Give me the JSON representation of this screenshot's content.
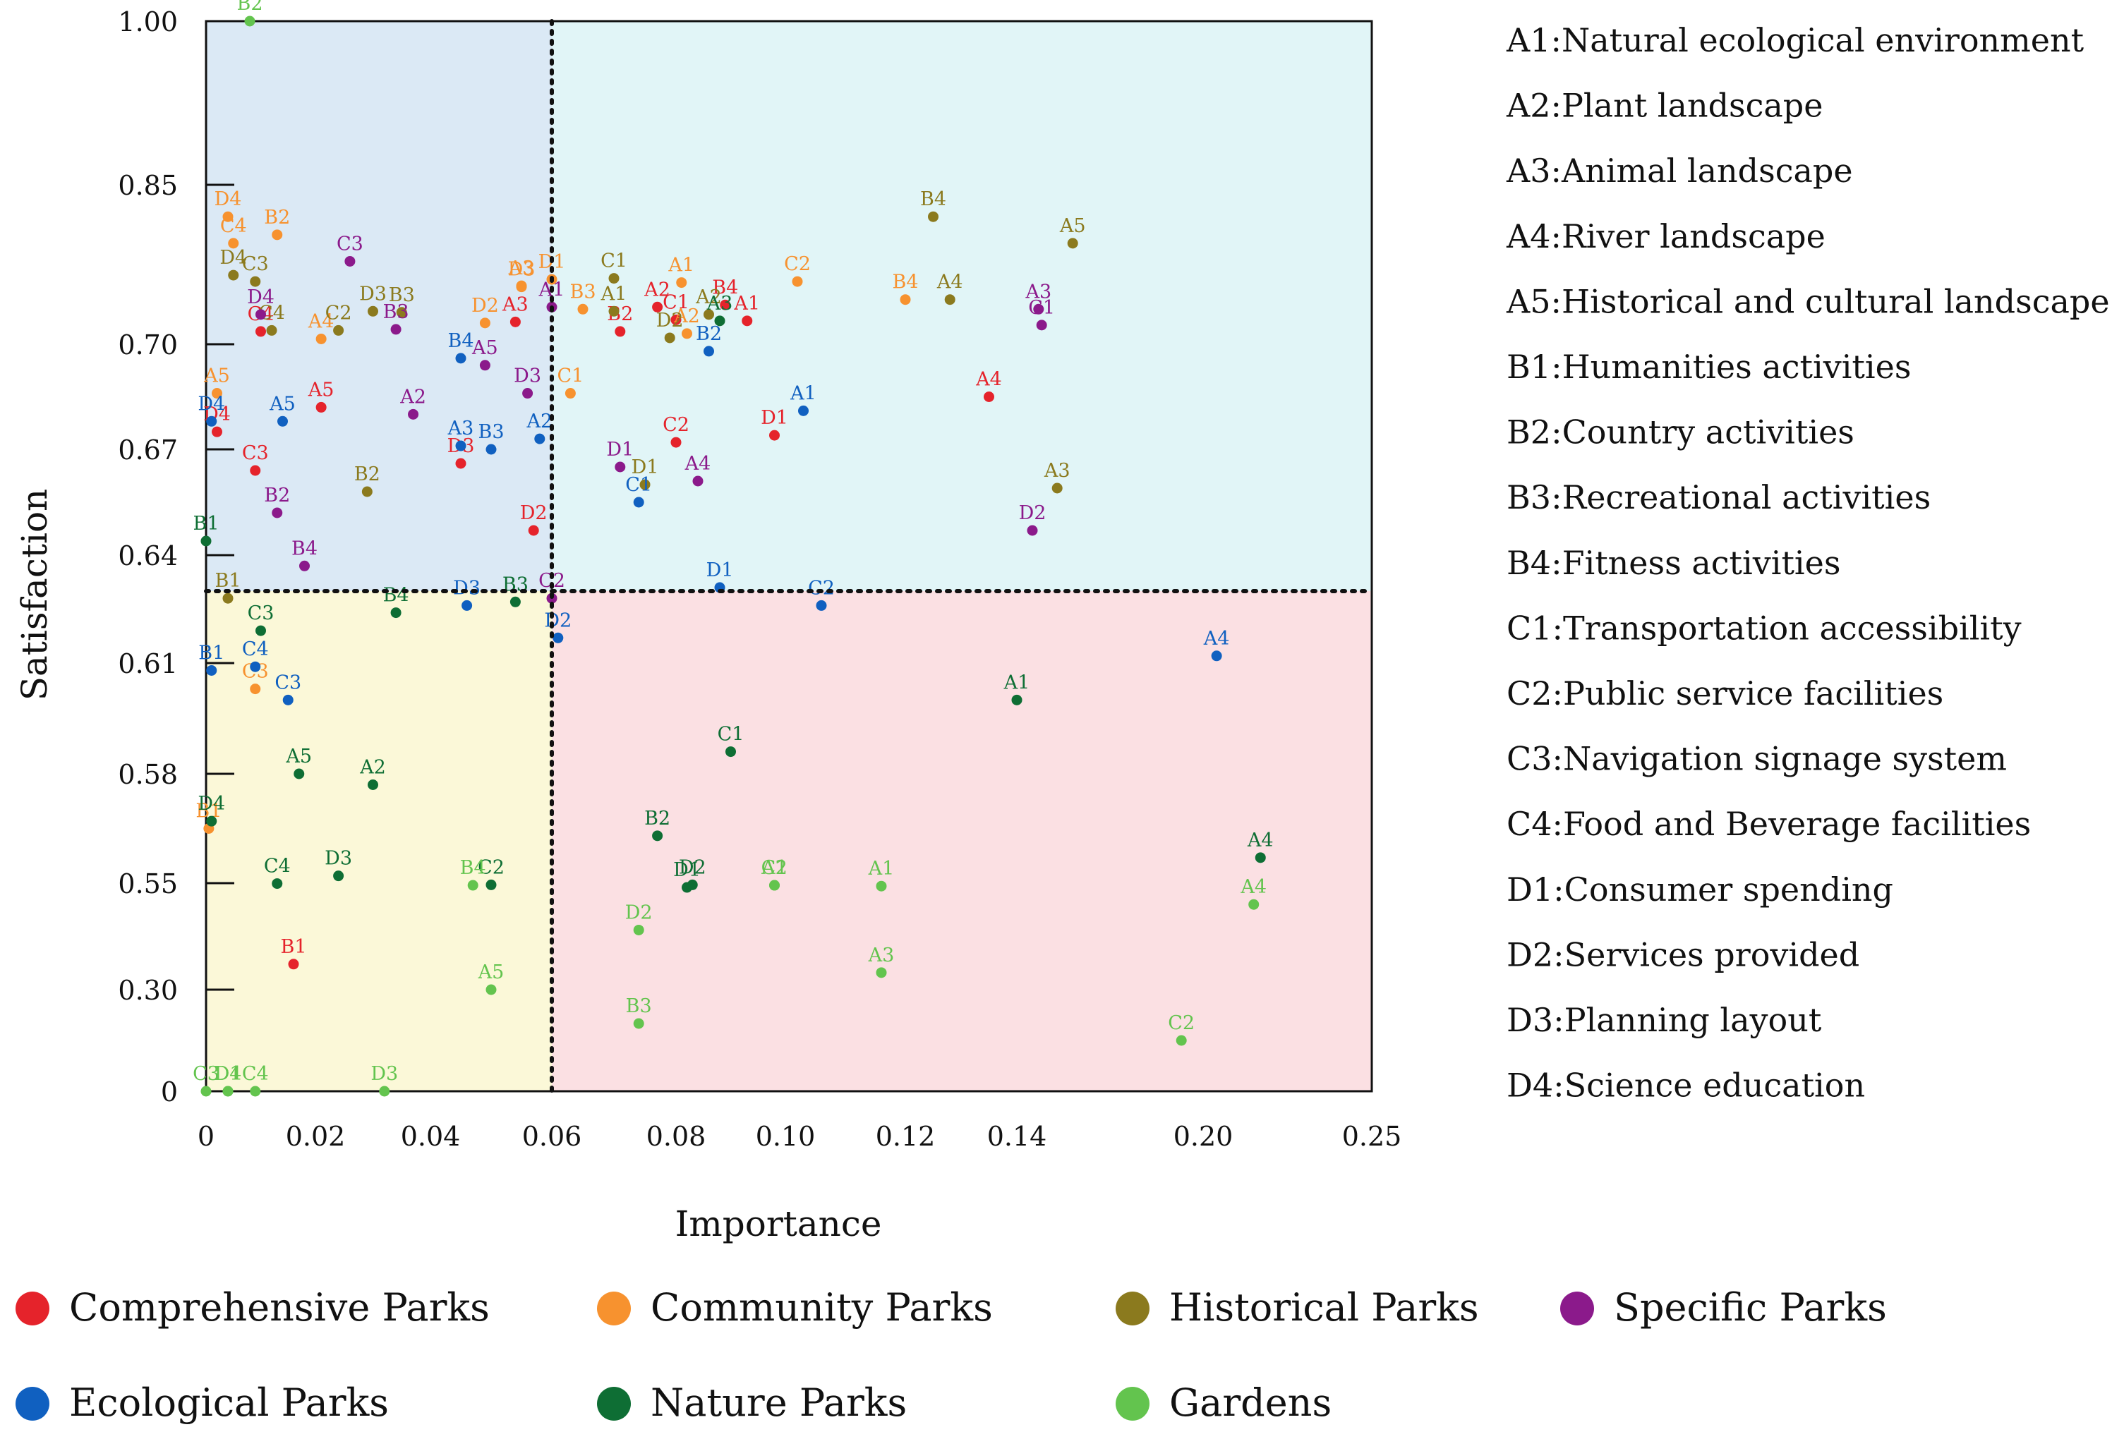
{
  "chart_data": {
    "type": "scatter",
    "title": "",
    "xlabel": "Importance",
    "ylabel": "Satisfaction",
    "xlim": [
      0,
      0.25
    ],
    "x_ticks": [
      {
        "v": 0,
        "label": "0"
      },
      {
        "v": 0.02,
        "label": "0.02"
      },
      {
        "v": 0.04,
        "label": "0.04"
      },
      {
        "v": 0.06,
        "label": "0.06"
      },
      {
        "v": 0.08,
        "label": "0.08"
      },
      {
        "v": 0.1,
        "label": "0.10"
      },
      {
        "v": 0.12,
        "label": "0.12"
      },
      {
        "v": 0.14,
        "label": "0.14"
      },
      {
        "v": 0.2,
        "label": "0.20"
      },
      {
        "v": 0.25,
        "label": "0.25"
      }
    ],
    "y_ticks": [
      {
        "v": 0,
        "label": "0"
      },
      {
        "v": 0.3,
        "label": "0.30"
      },
      {
        "v": 0.55,
        "label": "0.55"
      },
      {
        "v": 0.58,
        "label": "0.58"
      },
      {
        "v": 0.61,
        "label": "0.61"
      },
      {
        "v": 0.64,
        "label": "0.64"
      },
      {
        "v": 0.67,
        "label": "0.67"
      },
      {
        "v": 0.7,
        "label": "0.70"
      },
      {
        "v": 0.85,
        "label": "0.85"
      },
      {
        "v": 1.0,
        "label": "1.00"
      }
    ],
    "divider_x": 0.06,
    "divider_y": 0.63,
    "quadrant_colors": {
      "top_left": "#dbe9f5",
      "top_right": "#e1f5f7",
      "bottom_left": "#fbf8d8",
      "bottom_right": "#fbe0e3"
    },
    "series": [
      {
        "name": "Comprehensive Parks",
        "color": "#e5232b",
        "points": [
          {
            "label": "A1",
            "x": 0.093,
            "y": 0.722
          },
          {
            "label": "A2",
            "x": 0.077,
            "y": 0.735
          },
          {
            "label": "A3",
            "x": 0.054,
            "y": 0.721
          },
          {
            "label": "A4",
            "x": 0.135,
            "y": 0.685
          },
          {
            "label": "A5",
            "x": 0.021,
            "y": 0.682
          },
          {
            "label": "B1",
            "x": 0.016,
            "y": 0.36
          },
          {
            "label": "B2",
            "x": 0.071,
            "y": 0.712
          },
          {
            "label": "B4",
            "x": 0.089,
            "y": 0.737
          },
          {
            "label": "C1",
            "x": 0.08,
            "y": 0.723
          },
          {
            "label": "C2",
            "x": 0.08,
            "y": 0.672
          },
          {
            "label": "C3",
            "x": 0.009,
            "y": 0.664
          },
          {
            "label": "C4",
            "x": 0.01,
            "y": 0.712
          },
          {
            "label": "D1",
            "x": 0.098,
            "y": 0.674
          },
          {
            "label": "D2",
            "x": 0.057,
            "y": 0.647
          },
          {
            "label": "D3",
            "x": 0.045,
            "y": 0.666
          },
          {
            "label": "D4",
            "x": 0.002,
            "y": 0.675
          }
        ]
      },
      {
        "name": "Community Parks",
        "color": "#f7922f",
        "points": [
          {
            "label": "A1",
            "x": 0.081,
            "y": 0.758
          },
          {
            "label": "A2",
            "x": 0.082,
            "y": 0.71
          },
          {
            "label": "A3",
            "x": 0.055,
            "y": 0.755
          },
          {
            "label": "A4",
            "x": 0.021,
            "y": 0.705
          },
          {
            "label": "A5",
            "x": 0.002,
            "y": 0.686
          },
          {
            "label": "B1",
            "x": 0.0005,
            "y": 0.565
          },
          {
            "label": "B2",
            "x": 0.013,
            "y": 0.803
          },
          {
            "label": "B3",
            "x": 0.065,
            "y": 0.733
          },
          {
            "label": "B4",
            "x": 0.12,
            "y": 0.742
          },
          {
            "label": "C1",
            "x": 0.063,
            "y": 0.686
          },
          {
            "label": "C2",
            "x": 0.102,
            "y": 0.759
          },
          {
            "label": "C3",
            "x": 0.009,
            "y": 0.603
          },
          {
            "label": "C4",
            "x": 0.005,
            "y": 0.795
          },
          {
            "label": "D1",
            "x": 0.06,
            "y": 0.761
          },
          {
            "label": "D2",
            "x": 0.049,
            "y": 0.72
          },
          {
            "label": "D3",
            "x": 0.055,
            "y": 0.754
          },
          {
            "label": "D4",
            "x": 0.004,
            "y": 0.82
          }
        ]
      },
      {
        "name": "Historical Parks",
        "color": "#8b7a1e",
        "points": [
          {
            "label": "A1",
            "x": 0.07,
            "y": 0.731
          },
          {
            "label": "A2",
            "x": 0.086,
            "y": 0.728
          },
          {
            "label": "A3",
            "x": 0.153,
            "y": 0.659
          },
          {
            "label": "A4",
            "x": 0.128,
            "y": 0.742
          },
          {
            "label": "A5",
            "x": 0.158,
            "y": 0.795
          },
          {
            "label": "B1",
            "x": 0.004,
            "y": 0.628
          },
          {
            "label": "B2",
            "x": 0.029,
            "y": 0.658
          },
          {
            "label": "B3",
            "x": 0.035,
            "y": 0.73
          },
          {
            "label": "B4",
            "x": 0.125,
            "y": 0.82
          },
          {
            "label": "C1",
            "x": 0.07,
            "y": 0.762
          },
          {
            "label": "C2",
            "x": 0.024,
            "y": 0.713
          },
          {
            "label": "C3",
            "x": 0.009,
            "y": 0.759
          },
          {
            "label": "C4",
            "x": 0.012,
            "y": 0.713
          },
          {
            "label": "D1",
            "x": 0.075,
            "y": 0.66
          },
          {
            "label": "D2",
            "x": 0.079,
            "y": 0.706
          },
          {
            "label": "D3",
            "x": 0.03,
            "y": 0.731
          },
          {
            "label": "D4",
            "x": 0.005,
            "y": 0.765
          }
        ]
      },
      {
        "name": "Specific Parks",
        "color": "#8b1a8b",
        "points": [
          {
            "label": "A1",
            "x": 0.06,
            "y": 0.735
          },
          {
            "label": "A2",
            "x": 0.037,
            "y": 0.68
          },
          {
            "label": "A3",
            "x": 0.147,
            "y": 0.733
          },
          {
            "label": "A4",
            "x": 0.084,
            "y": 0.661
          },
          {
            "label": "A5",
            "x": 0.049,
            "y": 0.694
          },
          {
            "label": "B2",
            "x": 0.013,
            "y": 0.652
          },
          {
            "label": "B3",
            "x": 0.034,
            "y": 0.714
          },
          {
            "label": "B4",
            "x": 0.018,
            "y": 0.637
          },
          {
            "label": "C1",
            "x": 0.148,
            "y": 0.718
          },
          {
            "label": "C2",
            "x": 0.06,
            "y": 0.628
          },
          {
            "label": "C3",
            "x": 0.026,
            "y": 0.778
          },
          {
            "label": "D1",
            "x": 0.071,
            "y": 0.665
          },
          {
            "label": "D2",
            "x": 0.145,
            "y": 0.647
          },
          {
            "label": "D3",
            "x": 0.056,
            "y": 0.686
          },
          {
            "label": "D4",
            "x": 0.01,
            "y": 0.728
          }
        ]
      },
      {
        "name": "Ecological Parks",
        "color": "#1060c0",
        "points": [
          {
            "label": "A1",
            "x": 0.103,
            "y": 0.681
          },
          {
            "label": "A2",
            "x": 0.058,
            "y": 0.673
          },
          {
            "label": "A3",
            "x": 0.045,
            "y": 0.671
          },
          {
            "label": "A4",
            "x": 0.204,
            "y": 0.612
          },
          {
            "label": "A5",
            "x": 0.014,
            "y": 0.678
          },
          {
            "label": "B1",
            "x": 0.001,
            "y": 0.608
          },
          {
            "label": "B2",
            "x": 0.086,
            "y": 0.698
          },
          {
            "label": "B3",
            "x": 0.05,
            "y": 0.67
          },
          {
            "label": "B4",
            "x": 0.045,
            "y": 0.696
          },
          {
            "label": "C1",
            "x": 0.074,
            "y": 0.655
          },
          {
            "label": "C2",
            "x": 0.106,
            "y": 0.626
          },
          {
            "label": "C3",
            "x": 0.015,
            "y": 0.6
          },
          {
            "label": "C4",
            "x": 0.009,
            "y": 0.609
          },
          {
            "label": "D1",
            "x": 0.088,
            "y": 0.631
          },
          {
            "label": "D2",
            "x": 0.061,
            "y": 0.617
          },
          {
            "label": "D3",
            "x": 0.046,
            "y": 0.626
          },
          {
            "label": "D4",
            "x": 0.001,
            "y": 0.678
          }
        ]
      },
      {
        "name": "Nature Parks",
        "color": "#0e6e34",
        "points": [
          {
            "label": "A1",
            "x": 0.14,
            "y": 0.6
          },
          {
            "label": "A2",
            "x": 0.03,
            "y": 0.577
          },
          {
            "label": "A3",
            "x": 0.088,
            "y": 0.722
          },
          {
            "label": "A4",
            "x": 0.217,
            "y": 0.557
          },
          {
            "label": "A5",
            "x": 0.017,
            "y": 0.58
          },
          {
            "label": "B1",
            "x": 0.0,
            "y": 0.644
          },
          {
            "label": "B2",
            "x": 0.077,
            "y": 0.563
          },
          {
            "label": "B3",
            "x": 0.054,
            "y": 0.627
          },
          {
            "label": "B4",
            "x": 0.034,
            "y": 0.624
          },
          {
            "label": "C1",
            "x": 0.09,
            "y": 0.586
          },
          {
            "label": "C2",
            "x": 0.05,
            "y": 0.546
          },
          {
            "label": "C3",
            "x": 0.01,
            "y": 0.619
          },
          {
            "label": "C4",
            "x": 0.013,
            "y": 0.549
          },
          {
            "label": "D1",
            "x": 0.082,
            "y": 0.54
          },
          {
            "label": "D2",
            "x": 0.083,
            "y": 0.546
          },
          {
            "label": "D3",
            "x": 0.024,
            "y": 0.552
          },
          {
            "label": "D4",
            "x": 0.001,
            "y": 0.567
          }
        ]
      },
      {
        "name": "Gardens",
        "color": "#63c44e",
        "points": [
          {
            "label": "A1",
            "x": 0.116,
            "y": 0.543
          },
          {
            "label": "A2",
            "x": 0.098,
            "y": 0.545
          },
          {
            "label": "A3",
            "x": 0.116,
            "y": 0.34
          },
          {
            "label": "A4",
            "x": 0.215,
            "y": 0.5
          },
          {
            "label": "A5",
            "x": 0.05,
            "y": 0.3
          },
          {
            "label": "B2",
            "x": 0.008,
            "y": 1.0
          },
          {
            "label": "B3",
            "x": 0.074,
            "y": 0.2
          },
          {
            "label": "B4",
            "x": 0.047,
            "y": 0.545
          },
          {
            "label": "C1",
            "x": 0.098,
            "y": 0.545
          },
          {
            "label": "C2",
            "x": 0.193,
            "y": 0.15
          },
          {
            "label": "C3",
            "x": 0.0,
            "y": 0.0
          },
          {
            "label": "C4",
            "x": 0.009,
            "y": 0.0
          },
          {
            "label": "D1",
            "x": 0.004,
            "y": 0.0
          },
          {
            "label": "D2",
            "x": 0.074,
            "y": 0.44
          },
          {
            "label": "D3",
            "x": 0.032,
            "y": 0.0
          },
          {
            "label": "D4",
            "x": 0.004,
            "y": 0.0
          }
        ]
      }
    ]
  },
  "code_legend": [
    "A1:Natural ecological environment",
    "A2:Plant landscape",
    "A3:Animal landscape",
    "A4:River landscape",
    "A5:Historical and cultural landscape",
    "B1:Humanities activities",
    "B2:Country activities",
    "B3:Recreational activities",
    "B4:Fitness activities",
    "C1:Transportation accessibility",
    "C2:Public service facilities",
    "C3:Navigation signage system",
    "C4:Food and Beverage facilities",
    "D1:Consumer  spending",
    "D2:Services provided",
    "D3:Planning layout",
    "D4:Science education"
  ]
}
